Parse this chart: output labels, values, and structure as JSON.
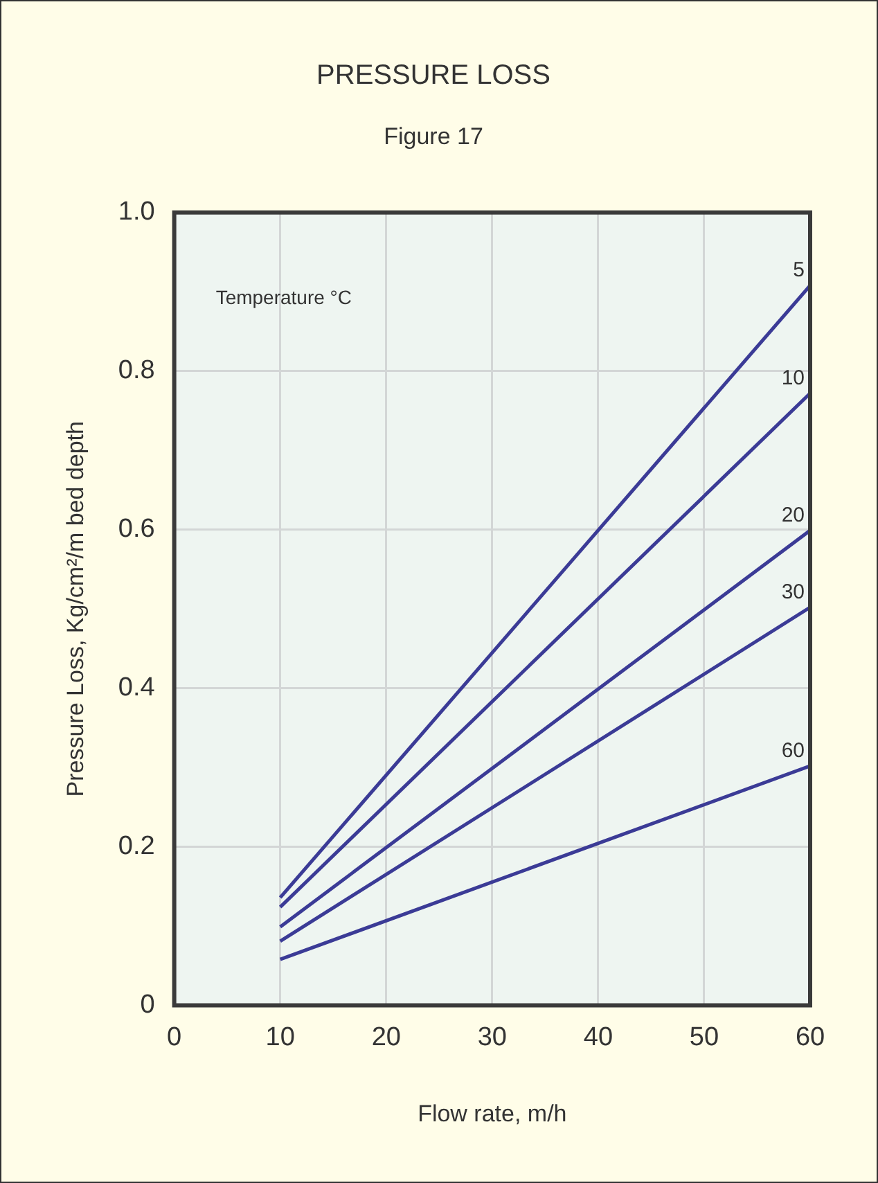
{
  "chart_data": {
    "type": "line",
    "title": "PRESSURE LOSS",
    "subtitle": "Figure 17",
    "xlabel": "Flow rate, m/h",
    "ylabel": "Pressure Loss, Kg/cm²/m bed depth",
    "annotations": [
      "Temperature °C"
    ],
    "x": [
      10,
      60
    ],
    "xlim": [
      0,
      60
    ],
    "xticks": [
      0,
      10,
      20,
      30,
      40,
      50,
      60
    ],
    "ylim": [
      0,
      1
    ],
    "yticks": [
      0,
      0.2,
      0.4,
      0.6,
      0.8,
      {
        "value": 1,
        "label": "1.0"
      }
    ],
    "grid": true,
    "legend": false,
    "marker": "none",
    "line_style": "solid",
    "series": [
      {
        "name": "5",
        "color": "#3b3b96",
        "values": [
          0.136,
          0.908
        ]
      },
      {
        "name": "10",
        "color": "#3b3b96",
        "values": [
          0.124,
          0.772
        ]
      },
      {
        "name": "20",
        "color": "#3b3b96",
        "values": [
          0.099,
          0.599
        ]
      },
      {
        "name": "30",
        "color": "#3b3b96",
        "values": [
          0.081,
          0.502
        ]
      },
      {
        "name": "60",
        "color": "#3b3b96",
        "values": [
          0.058,
          0.302
        ]
      }
    ]
  }
}
